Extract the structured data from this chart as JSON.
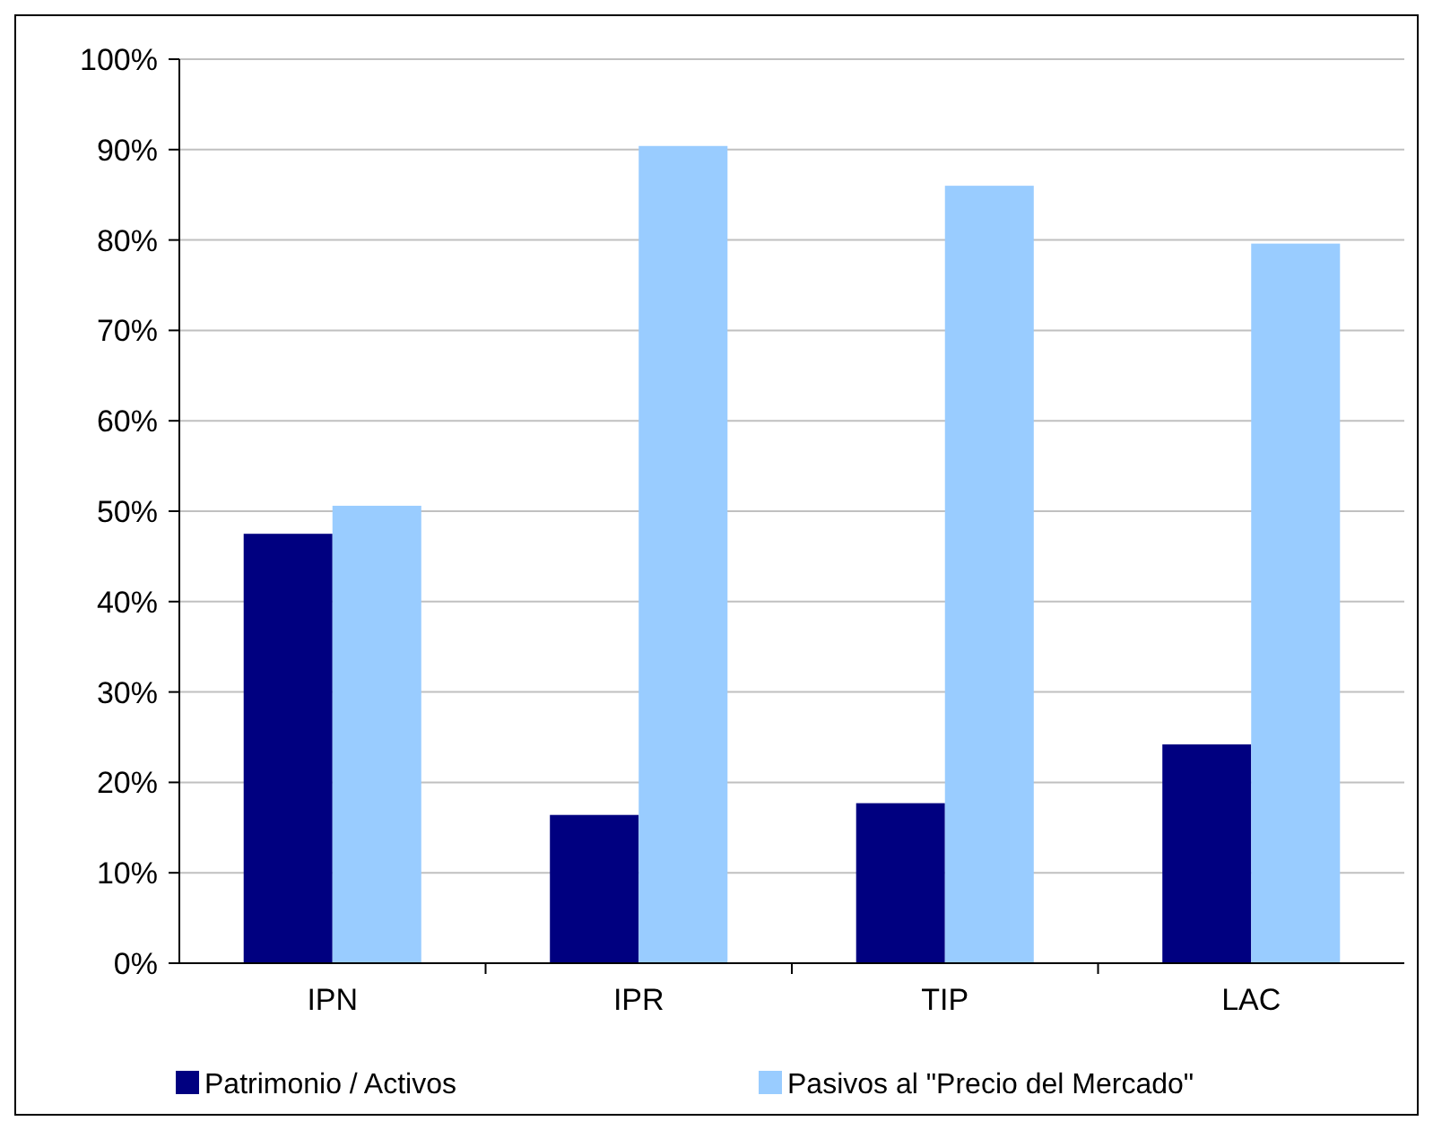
{
  "chart_data": {
    "type": "bar",
    "categories": [
      "IPN",
      "IPR",
      "TIP",
      "LAC"
    ],
    "series": [
      {
        "name": "Patrimonio / Activos",
        "color": "#000080",
        "values": [
          47.5,
          16.4,
          17.7,
          24.2
        ]
      },
      {
        "name": "Pasivos al \"Precio del Mercado\"",
        "color": "#99ccff",
        "values": [
          50.6,
          90.4,
          86.0,
          79.6
        ]
      }
    ],
    "ylim": [
      0,
      100
    ],
    "yticks": [
      {
        "value": 0,
        "label": "0%"
      },
      {
        "value": 10,
        "label": "10%"
      },
      {
        "value": 20,
        "label": "20%"
      },
      {
        "value": 30,
        "label": "30%"
      },
      {
        "value": 40,
        "label": "40%"
      },
      {
        "value": 50,
        "label": "50%"
      },
      {
        "value": 60,
        "label": "60%"
      },
      {
        "value": 70,
        "label": "70%"
      },
      {
        "value": 80,
        "label": "80%"
      },
      {
        "value": 90,
        "label": "90%"
      },
      {
        "value": 100,
        "label": "100%"
      }
    ],
    "grid": "y",
    "legend": "bottom"
  }
}
